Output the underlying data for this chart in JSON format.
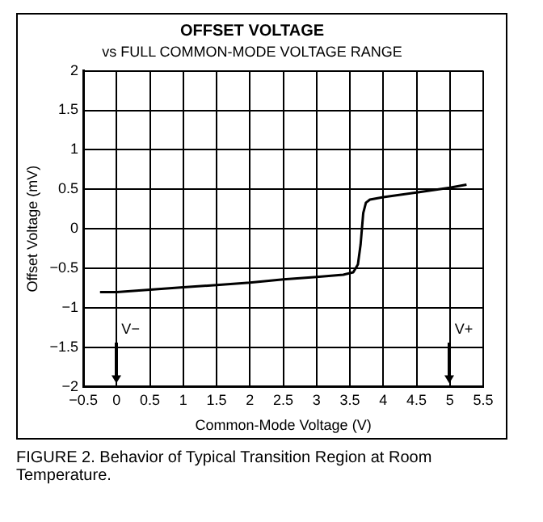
{
  "chart_data": {
    "type": "line",
    "title": "OFFSET VOLTAGE",
    "subtitle": "vs FULL COMMON-MODE VOLTAGE RANGE",
    "xlabel": "Common-Mode Voltage (V)",
    "ylabel": "Offset Voltage (mV)",
    "x": [
      -0.25,
      0,
      0.5,
      1,
      1.5,
      2,
      2.5,
      3,
      3.4,
      3.55,
      3.62,
      3.66,
      3.7,
      3.74,
      3.8,
      4,
      4.5,
      5,
      5.25
    ],
    "series": [
      {
        "color": "#000000",
        "values": [
          -0.8,
          -0.8,
          -0.77,
          -0.74,
          -0.71,
          -0.68,
          -0.64,
          -0.61,
          -0.58,
          -0.55,
          -0.45,
          -0.2,
          0.2,
          0.33,
          0.37,
          0.4,
          0.46,
          0.52,
          0.56
        ]
      }
    ],
    "xlim": [
      -0.5,
      5.5
    ],
    "xticks": [
      -0.5,
      0,
      0.5,
      1,
      1.5,
      2,
      2.5,
      3,
      3.5,
      4,
      4.5,
      5,
      5.5
    ],
    "ylim": [
      -2,
      2
    ],
    "yticks": [
      -2,
      -1.5,
      -1,
      -0.5,
      0,
      0.5,
      1,
      1.5,
      2
    ],
    "grid": true,
    "legend": false,
    "marker": "none",
    "line_style": "solid",
    "annotations": [
      "V−",
      "V+",
      "FIGURE 2. Behavior of Typical Transition Region at Room Temperature."
    ]
  }
}
